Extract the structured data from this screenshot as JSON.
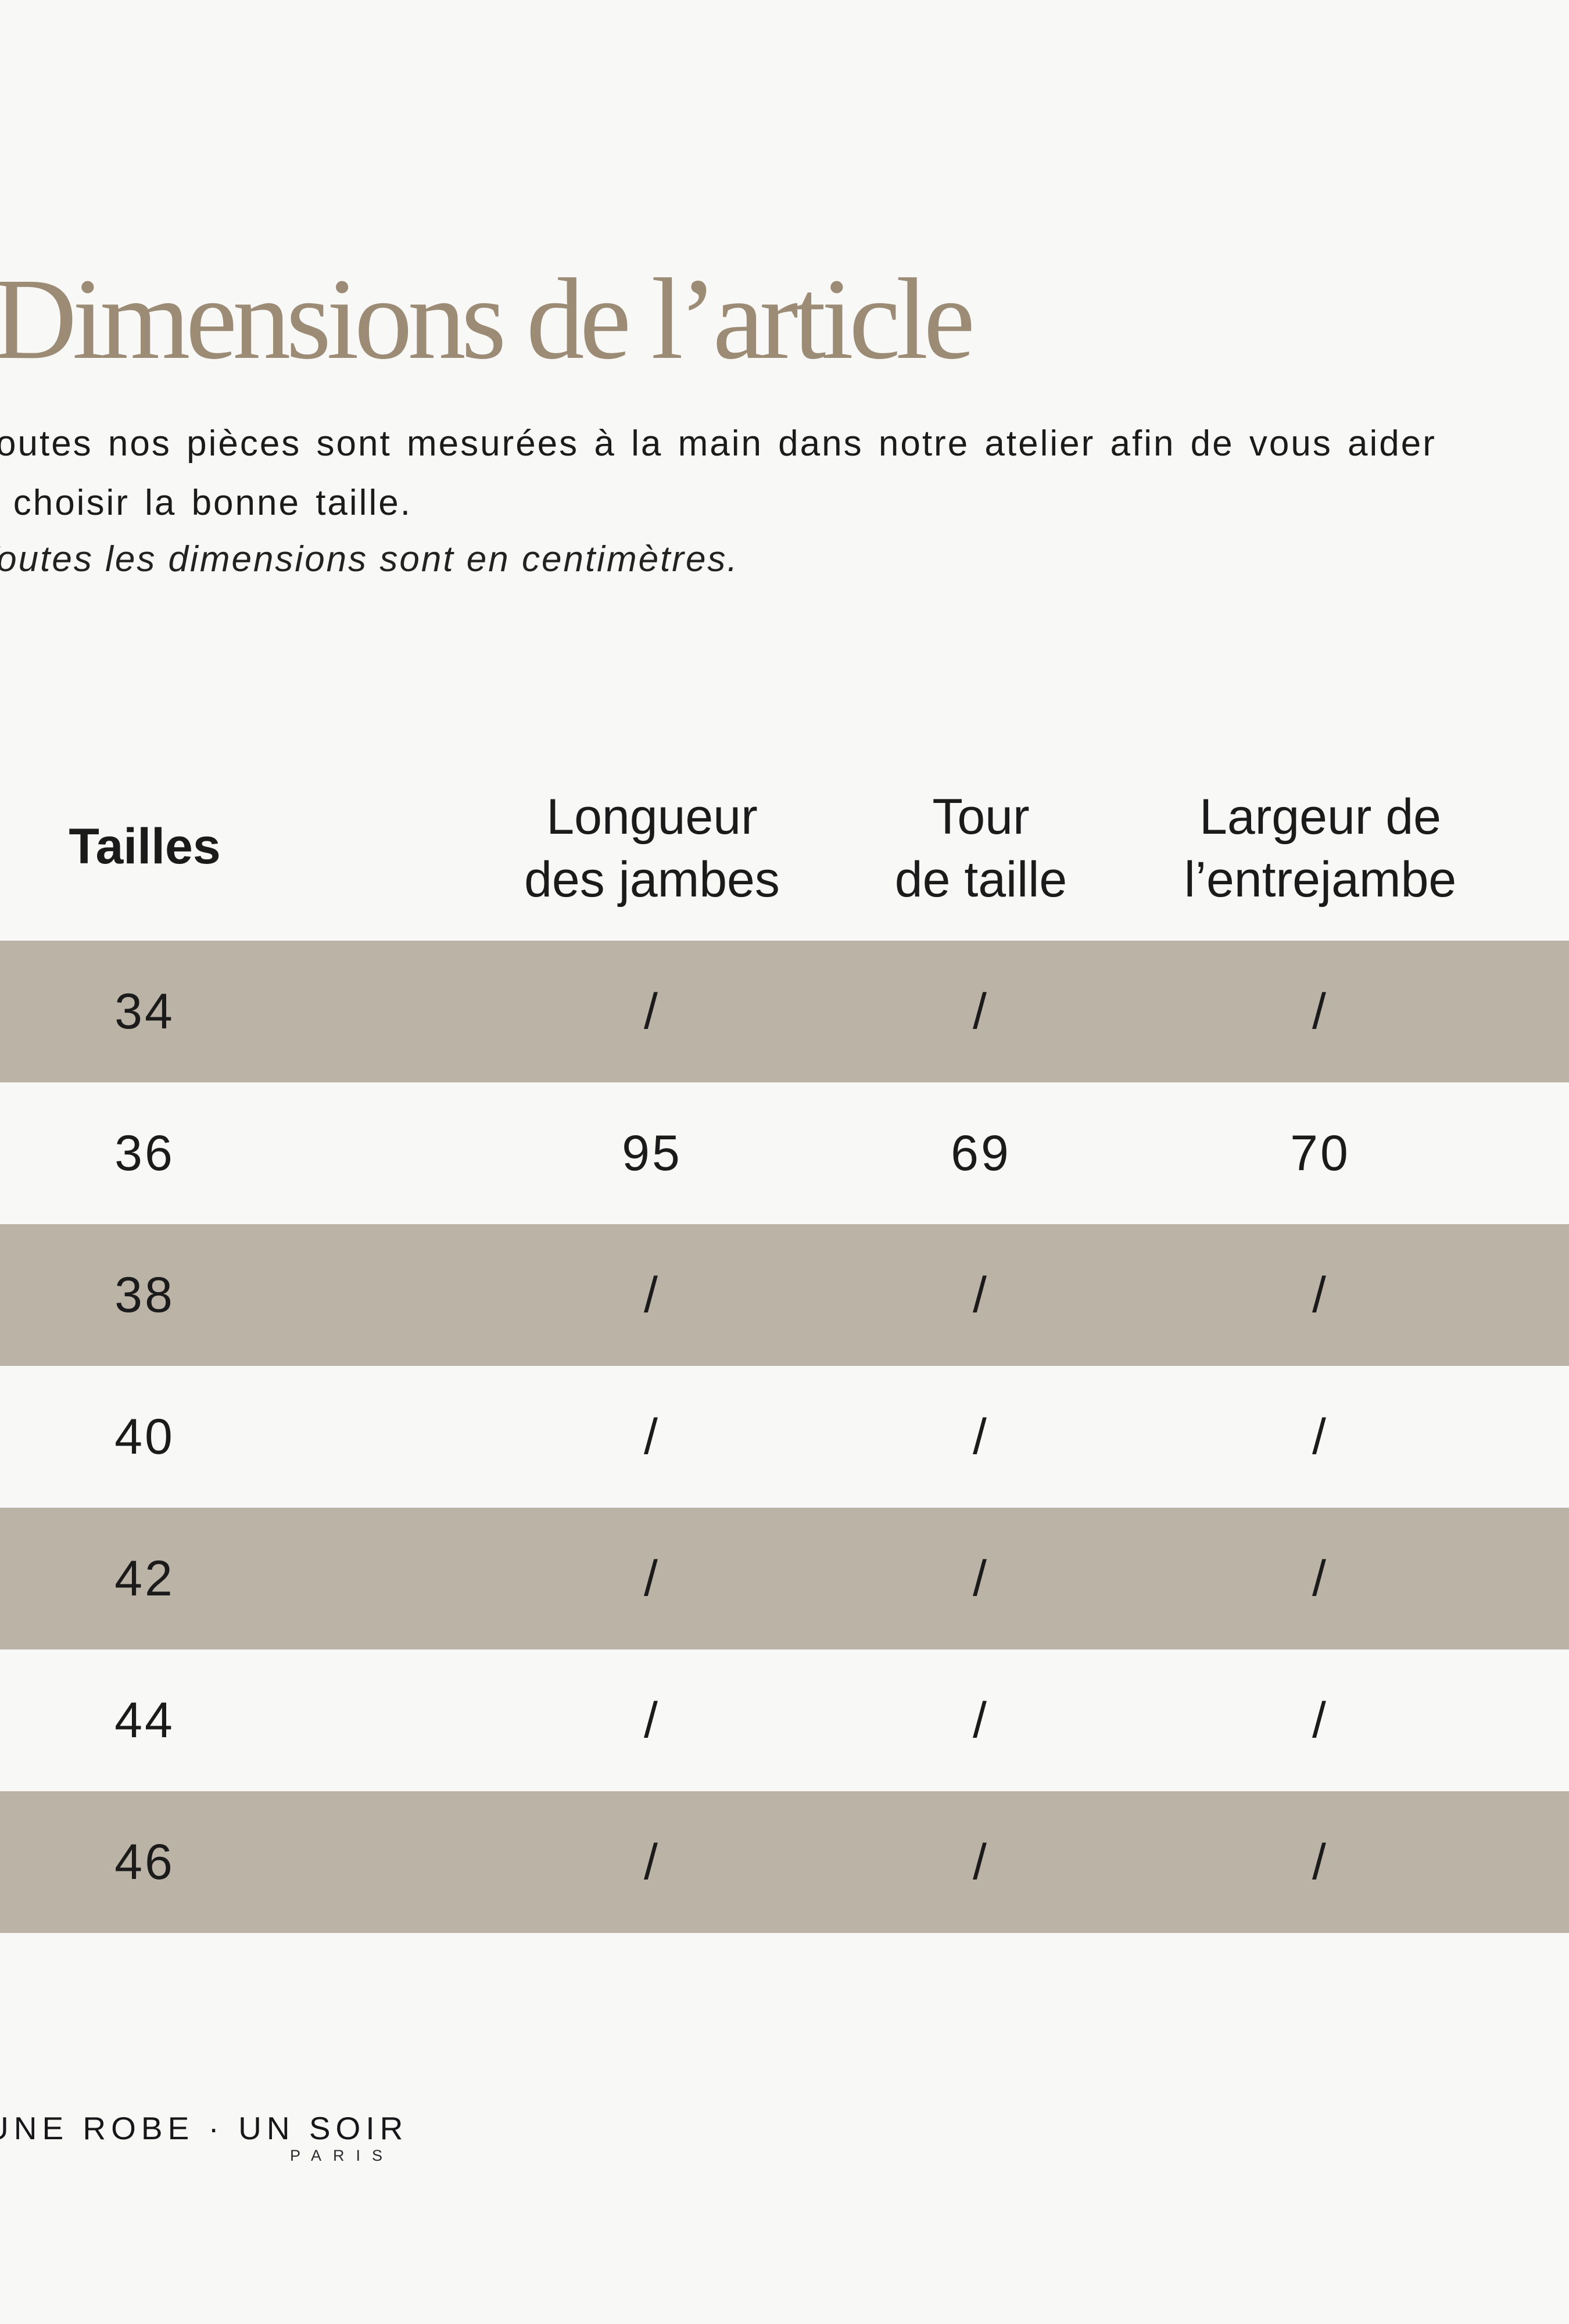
{
  "page": {
    "title": "Dimensions de l’article",
    "intro_line1": "Toutes nos pièces sont mesurées à la main dans notre atelier afin de vous aider",
    "intro_line2": "à choisir la bonne taille.",
    "units_note": "Toutes les dimensions sont en centimètres."
  },
  "table": {
    "size_header": "Tailles",
    "columns": [
      {
        "line1": "Longueur",
        "line2": "des jambes"
      },
      {
        "line1": "Tour",
        "line2": "de taille"
      },
      {
        "line1": "Largeur de",
        "line2": "l’entrejambe"
      }
    ],
    "rows": [
      {
        "size": "34",
        "values": [
          "/",
          "/",
          "/"
        ]
      },
      {
        "size": "36",
        "values": [
          "95",
          "69",
          "70"
        ]
      },
      {
        "size": "38",
        "values": [
          "/",
          "/",
          "/"
        ]
      },
      {
        "size": "40",
        "values": [
          "/",
          "/",
          "/"
        ]
      },
      {
        "size": "42",
        "values": [
          "/",
          "/",
          "/"
        ]
      },
      {
        "size": "44",
        "values": [
          "/",
          "/",
          "/"
        ]
      },
      {
        "size": "46",
        "values": [
          "/",
          "/",
          "/"
        ]
      }
    ]
  },
  "footer": {
    "brand": "UNE ROBE · UN SOIR",
    "city": "PARIS"
  },
  "colors": {
    "background": "#f8f8f7",
    "shaded_row": "#bab3a6",
    "title_text": "#9c8c75",
    "body_text": "#1b1b1b"
  }
}
